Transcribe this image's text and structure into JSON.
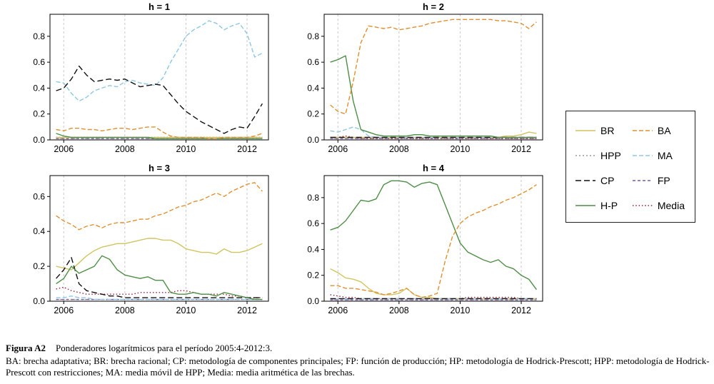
{
  "caption": {
    "label": "Figura A2",
    "title": "Ponderadores logarítmicos para el período 2005:4-2012:3.",
    "note": "BA: brecha adaptativa; BR: brecha racional; CP: metodología de componentes principales; FP: función de producción; HP: metodología de Hodrick-Prescott; HPP: metodología de Hodrick-Prescott con restricciones; MA: media móvil de HPP; Media: media aritmética de las brechas."
  },
  "legend": {
    "columns": [
      [
        "BR",
        "HPP",
        "CP",
        "HP"
      ],
      [
        "BA",
        "MA",
        "FP",
        "Media"
      ]
    ]
  },
  "chart_data": {
    "type": "line",
    "x_axis": {
      "range": [
        2005.75,
        2012.5
      ],
      "ticks": [
        2006,
        2008,
        2010,
        2012
      ],
      "grid": "dashed-vertical"
    },
    "x": [
      2005.75,
      2006,
      2006.25,
      2006.5,
      2006.75,
      2007,
      2007.25,
      2007.5,
      2007.75,
      2008,
      2008.25,
      2008.5,
      2008.75,
      2009,
      2009.25,
      2009.5,
      2009.75,
      2010,
      2010.25,
      2010.5,
      2010.75,
      2011,
      2011.25,
      2011.5,
      2011.75,
      2012,
      2012.25,
      2012.5
    ],
    "series_styles": {
      "BR": {
        "label": "BR",
        "color": "#d2c45e",
        "dash": ""
      },
      "BA": {
        "label": "BA",
        "color": "#e2902f",
        "dash": "6,3"
      },
      "HPP": {
        "label": "HPP",
        "color": "#9a9a9a",
        "dash": "2,3"
      },
      "MA": {
        "label": "MA",
        "color": "#8ec7e6",
        "dash": "6,3"
      },
      "CP": {
        "label": "CP",
        "color": "#111111",
        "dash": "8,4"
      },
      "FP": {
        "label": "FP",
        "color": "#7a5aa0",
        "dash": "4,3"
      },
      "HP": {
        "label": "H-P",
        "color": "#4d8f45",
        "dash": ""
      },
      "Media": {
        "label": "Media",
        "color": "#9c2136",
        "dash": "1.5,2.8"
      }
    },
    "draw_order": [
      "HPP",
      "FP",
      "Media",
      "BR",
      "MA",
      "CP",
      "HP",
      "BA"
    ],
    "panels": [
      {
        "id": "h1",
        "title": "h = 1",
        "ymax": 0.97,
        "yticks": [
          0,
          0.2,
          0.4,
          0.6,
          0.8
        ],
        "xticks": [
          2006,
          2008,
          2010,
          2012
        ],
        "series": {
          "BR": 0.02,
          "BA": [
            0.08,
            0.07,
            0.09,
            0.09,
            0.08,
            0.08,
            0.07,
            0.08,
            0.09,
            0.09,
            0.08,
            0.09,
            0.1,
            0.1,
            0.06,
            0.03,
            0.02,
            0.02,
            0.02,
            0.02,
            0.01,
            0.01,
            0.02,
            0.02,
            0.02,
            0.02,
            0.03,
            0.05
          ],
          "HPP": 0.01,
          "MA": [
            0.45,
            0.44,
            0.36,
            0.3,
            0.33,
            0.38,
            0.4,
            0.42,
            0.41,
            0.45,
            0.46,
            0.44,
            0.43,
            0.42,
            0.48,
            0.6,
            0.7,
            0.8,
            0.85,
            0.88,
            0.92,
            0.9,
            0.85,
            0.88,
            0.9,
            0.82,
            0.64,
            0.67
          ],
          "CP": [
            0.38,
            0.4,
            0.47,
            0.57,
            0.5,
            0.45,
            0.46,
            0.47,
            0.46,
            0.47,
            0.44,
            0.41,
            0.42,
            0.43,
            0.42,
            0.35,
            0.28,
            0.22,
            0.18,
            0.14,
            0.11,
            0.08,
            0.05,
            0.08,
            0.1,
            0.09,
            0.18,
            0.28
          ],
          "FP": 0.01,
          "HP": [
            0.05,
            0.03,
            0.02,
            0.02,
            0.02,
            0.02,
            0.02,
            0.02,
            0.02,
            0.02,
            0.02,
            0.02,
            0.02,
            0.01,
            0.01,
            0.01,
            0.01,
            0.01,
            0.01,
            0.01,
            0.01,
            0.01,
            0.01,
            0.01,
            0.01,
            0.01,
            0.01,
            0.01
          ],
          "Media": 0.02
        }
      },
      {
        "id": "h2",
        "title": "h = 2",
        "ymax": 0.97,
        "yticks": [
          0,
          0.2,
          0.4,
          0.6,
          0.8
        ],
        "xticks": [
          2006,
          2008,
          2010,
          2012
        ],
        "series": {
          "BR": [
            0.02,
            0.02,
            0.02,
            0.02,
            0.02,
            0.02,
            0.02,
            0.02,
            0.02,
            0.02,
            0.02,
            0.02,
            0.02,
            0.02,
            0.02,
            0.02,
            0.02,
            0.02,
            0.02,
            0.02,
            0.02,
            0.02,
            0.02,
            0.03,
            0.03,
            0.04,
            0.06,
            0.05
          ],
          "BA": [
            0.27,
            0.22,
            0.2,
            0.45,
            0.75,
            0.88,
            0.87,
            0.86,
            0.87,
            0.85,
            0.86,
            0.87,
            0.88,
            0.9,
            0.91,
            0.92,
            0.93,
            0.93,
            0.93,
            0.93,
            0.93,
            0.93,
            0.92,
            0.92,
            0.91,
            0.9,
            0.86,
            0.91
          ],
          "HPP": 0.01,
          "MA": [
            0.07,
            0.06,
            0.08,
            0.1,
            0.08,
            0.03,
            0.02,
            0.02,
            0.02,
            0.02,
            0.02,
            0.02,
            0.02,
            0.02,
            0.02,
            0.02,
            0.02,
            0.02,
            0.02,
            0.02,
            0.02,
            0.02,
            0.02,
            0.02,
            0.02,
            0.02,
            0.02,
            0.02
          ],
          "CP": 0.02,
          "FP": 0.01,
          "HP": [
            0.6,
            0.62,
            0.65,
            0.3,
            0.08,
            0.06,
            0.04,
            0.03,
            0.03,
            0.03,
            0.03,
            0.04,
            0.04,
            0.03,
            0.03,
            0.03,
            0.03,
            0.03,
            0.03,
            0.03,
            0.03,
            0.03,
            0.02,
            0.02,
            0.02,
            0.02,
            0.02,
            0.02
          ],
          "Media": [
            0.02,
            0.02,
            0.03,
            0.02,
            0.01,
            0.01,
            0.01,
            0.01,
            0.01,
            0.01,
            0.01,
            0.01,
            0.01,
            0.01,
            0.01,
            0.01,
            0.01,
            0.01,
            0.01,
            0.01,
            0.01,
            0.01,
            0.01,
            0.01,
            0.01,
            0.01,
            0.01,
            0.01
          ]
        }
      },
      {
        "id": "h3",
        "title": "h = 3",
        "ymax": 0.72,
        "yticks": [
          0,
          0.2,
          0.4,
          0.6
        ],
        "xticks": [
          2006,
          2008,
          2010,
          2012
        ],
        "series": {
          "BR": [
            0.2,
            0.19,
            0.18,
            0.22,
            0.26,
            0.29,
            0.31,
            0.32,
            0.33,
            0.33,
            0.34,
            0.35,
            0.36,
            0.36,
            0.35,
            0.35,
            0.33,
            0.3,
            0.29,
            0.28,
            0.28,
            0.27,
            0.3,
            0.28,
            0.28,
            0.29,
            0.31,
            0.33
          ],
          "BA": [
            0.49,
            0.46,
            0.44,
            0.41,
            0.43,
            0.44,
            0.42,
            0.44,
            0.45,
            0.45,
            0.46,
            0.47,
            0.47,
            0.49,
            0.5,
            0.52,
            0.54,
            0.55,
            0.57,
            0.58,
            0.6,
            0.62,
            0.6,
            0.63,
            0.65,
            0.67,
            0.68,
            0.63
          ],
          "HPP": 0.01,
          "MA": [
            0.02,
            0.02,
            0.03,
            0.02,
            0.02,
            0.01,
            0.01,
            0.01,
            0.01,
            0.01,
            0.01,
            0.01,
            0.01,
            0.01,
            0.01,
            0.01,
            0.01,
            0.01,
            0.01,
            0.01,
            0.01,
            0.01,
            0.01,
            0.01,
            0.01,
            0.01,
            0.01,
            0.01
          ],
          "CP": [
            0.13,
            0.18,
            0.25,
            0.1,
            0.06,
            0.05,
            0.04,
            0.03,
            0.03,
            0.02,
            0.02,
            0.02,
            0.02,
            0.02,
            0.02,
            0.02,
            0.02,
            0.02,
            0.02,
            0.02,
            0.02,
            0.02,
            0.02,
            0.02,
            0.02,
            0.02,
            0.02,
            0.02
          ],
          "FP": 0.01,
          "HP": [
            0.1,
            0.13,
            0.2,
            0.16,
            0.18,
            0.2,
            0.26,
            0.24,
            0.18,
            0.15,
            0.14,
            0.13,
            0.14,
            0.12,
            0.12,
            0.05,
            0.04,
            0.04,
            0.05,
            0.04,
            0.04,
            0.03,
            0.05,
            0.04,
            0.03,
            0.02,
            0.01,
            0.01
          ],
          "Media": [
            0.07,
            0.08,
            0.06,
            0.05,
            0.04,
            0.04,
            0.04,
            0.04,
            0.04,
            0.04,
            0.04,
            0.05,
            0.05,
            0.05,
            0.05,
            0.05,
            0.06,
            0.06,
            0.05,
            0.04,
            0.04,
            0.04,
            0.04,
            0.03,
            0.03,
            0.02,
            0.02,
            0.02
          ]
        }
      },
      {
        "id": "h4",
        "title": "h = 4",
        "ymax": 0.97,
        "yticks": [
          0,
          0.2,
          0.4,
          0.6,
          0.8
        ],
        "xticks": [
          2006,
          2008,
          2010,
          2012
        ],
        "series": {
          "BR": [
            0.25,
            0.22,
            0.18,
            0.17,
            0.15,
            0.1,
            0.06,
            0.05,
            0.05,
            0.06,
            0.1,
            0.05,
            0.03,
            0.03,
            0.02,
            0.02,
            0.02,
            0.02,
            0.02,
            0.02,
            0.02,
            0.02,
            0.02,
            0.02,
            0.02,
            0.02,
            0.02,
            0.02
          ],
          "BA": [
            0.12,
            0.12,
            0.1,
            0.1,
            0.09,
            0.08,
            0.07,
            0.05,
            0.06,
            0.08,
            0.1,
            0.05,
            0.03,
            0.04,
            0.06,
            0.3,
            0.5,
            0.6,
            0.65,
            0.68,
            0.7,
            0.73,
            0.75,
            0.78,
            0.8,
            0.83,
            0.86,
            0.9
          ],
          "HPP": 0.01,
          "MA": 0.02,
          "CP": 0.02,
          "FP": 0.01,
          "HP": [
            0.55,
            0.57,
            0.62,
            0.7,
            0.78,
            0.77,
            0.79,
            0.9,
            0.93,
            0.93,
            0.92,
            0.88,
            0.91,
            0.92,
            0.9,
            0.75,
            0.6,
            0.45,
            0.38,
            0.35,
            0.32,
            0.3,
            0.32,
            0.27,
            0.25,
            0.2,
            0.17,
            0.09
          ],
          "Media": [
            0.05,
            0.04,
            0.03,
            0.03,
            0.02,
            0.02,
            0.02,
            0.02,
            0.02,
            0.02,
            0.02,
            0.02,
            0.02,
            0.02,
            0.02,
            0.02,
            0.02,
            0.02,
            0.03,
            0.03,
            0.03,
            0.03,
            0.03,
            0.03,
            0.03,
            0.02,
            0.02,
            0.02
          ]
        }
      }
    ]
  }
}
